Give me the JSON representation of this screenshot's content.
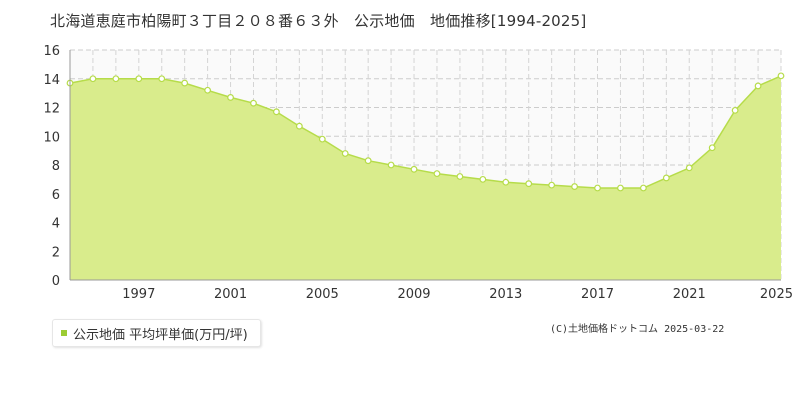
{
  "title": "北海道恵庭市柏陽町３丁目２０８番６３外　公示地価　地価推移[1994-2025]",
  "legend": {
    "label": "公示地価 平均坪単価(万円/坪)"
  },
  "credit": "(C)土地価格ドットコム 2025-03-22",
  "colors": {
    "fill": "#d9ec8c",
    "line": "#b6dc4a",
    "marker_fill": "#ffffff",
    "swatch": "#9ccc34"
  },
  "chart_data": {
    "type": "area",
    "x": [
      1994,
      1995,
      1996,
      1997,
      1998,
      1999,
      2000,
      2001,
      2002,
      2003,
      2004,
      2005,
      2006,
      2007,
      2008,
      2009,
      2010,
      2011,
      2012,
      2013,
      2014,
      2015,
      2016,
      2017,
      2018,
      2019,
      2020,
      2021,
      2022,
      2023,
      2024,
      2025
    ],
    "series": [
      {
        "values": [
          13.7,
          14.0,
          14.0,
          14.0,
          14.0,
          13.7,
          13.2,
          12.7,
          12.3,
          11.7,
          10.7,
          9.8,
          8.8,
          8.3,
          8.0,
          7.7,
          7.4,
          7.2,
          7.0,
          6.8,
          6.7,
          6.6,
          6.5,
          6.4,
          6.4,
          6.4,
          7.1,
          7.8,
          9.2,
          11.8,
          13.5,
          14.2
        ]
      }
    ],
    "xlim": [
      1994,
      2025
    ],
    "ylim": [
      0,
      16
    ],
    "xticks": [
      "1997",
      "2001",
      "2005",
      "2009",
      "2013",
      "2017",
      "2021",
      "2025"
    ],
    "yticks": [
      "0",
      "2",
      "4",
      "6",
      "8",
      "10",
      "12",
      "14",
      "16"
    ],
    "grid": true
  }
}
